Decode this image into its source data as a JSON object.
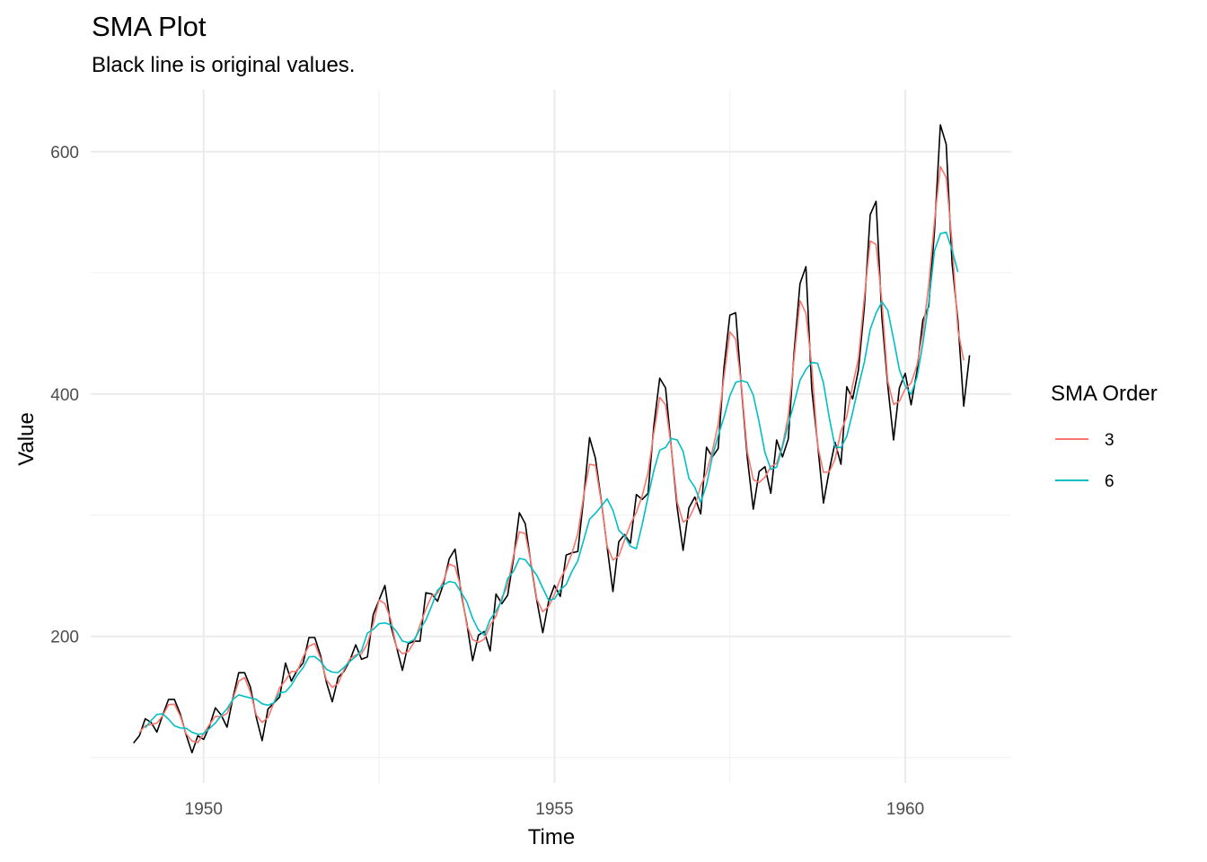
{
  "chart_data": {
    "type": "line",
    "title": "SMA Plot",
    "subtitle": "Black line is original values.",
    "xlabel": "Time",
    "ylabel": "Value",
    "xlim": [
      1948.39,
      1961.51
    ],
    "ylim": [
      79,
      651
    ],
    "x_ticks": [
      1950,
      1955,
      1960
    ],
    "x_tick_labels": [
      "1950",
      "1955",
      "1960"
    ],
    "x_minor_ticks": [
      1952.5,
      1957.5
    ],
    "y_ticks": [
      200,
      400,
      600
    ],
    "y_tick_labels": [
      "200",
      "400",
      "600"
    ],
    "y_minor_ticks": [
      100,
      300,
      500
    ],
    "grid": true,
    "legend": {
      "title": "SMA Order",
      "placement": "right",
      "entries": [
        {
          "label": "3",
          "color": "#F8766D"
        },
        {
          "label": "6",
          "color": "#00BFC4"
        }
      ]
    },
    "x_start": 1949.0,
    "x_step": 0.083333333,
    "series": [
      {
        "name": "Original",
        "color": "#000000",
        "values": [
          112,
          118,
          132,
          129,
          121,
          135,
          148,
          148,
          136,
          119,
          104,
          118,
          115,
          126,
          141,
          135,
          125,
          149,
          170,
          170,
          158,
          133,
          114,
          140,
          145,
          150,
          178,
          163,
          172,
          178,
          199,
          199,
          184,
          162,
          146,
          166,
          171,
          180,
          193,
          181,
          183,
          218,
          230,
          242,
          209,
          191,
          172,
          194,
          196,
          196,
          236,
          235,
          229,
          243,
          264,
          272,
          237,
          211,
          180,
          201,
          204,
          188,
          235,
          227,
          234,
          264,
          302,
          293,
          259,
          229,
          203,
          229,
          242,
          233,
          267,
          269,
          270,
          315,
          364,
          347,
          312,
          274,
          237,
          278,
          284,
          277,
          317,
          313,
          318,
          374,
          413,
          405,
          355,
          306,
          271,
          306,
          315,
          301,
          356,
          348,
          355,
          422,
          465,
          467,
          404,
          347,
          305,
          336,
          340,
          318,
          362,
          348,
          363,
          435,
          491,
          505,
          404,
          359,
          310,
          337,
          360,
          342,
          406,
          396,
          420,
          472,
          548,
          559,
          463,
          407,
          362,
          405,
          417,
          391,
          419,
          461,
          472,
          535,
          622,
          606,
          508,
          461,
          390,
          432
        ]
      },
      {
        "name": "3",
        "color": "#F8766D",
        "window": 3,
        "values": [
          null,
          120.67,
          126.33,
          127.33,
          128.33,
          134.67,
          143.67,
          144.0,
          134.33,
          119.67,
          113.67,
          112.33,
          119.67,
          127.33,
          134.0,
          133.67,
          136.33,
          148.0,
          163.0,
          166.0,
          153.67,
          135.0,
          129.0,
          133.0,
          145.0,
          157.67,
          163.67,
          171.0,
          171.0,
          183.0,
          192.0,
          194.0,
          181.67,
          164.0,
          158.0,
          161.0,
          172.33,
          181.33,
          184.67,
          185.67,
          194.0,
          210.33,
          230.0,
          227.0,
          214.0,
          190.67,
          185.67,
          187.33,
          195.33,
          209.33,
          222.33,
          233.33,
          235.67,
          245.33,
          259.67,
          257.67,
          240.0,
          209.33,
          197.33,
          195.0,
          197.67,
          209.0,
          216.67,
          232.0,
          241.67,
          266.67,
          286.33,
          284.67,
          260.33,
          230.33,
          220.33,
          224.67,
          234.67,
          247.33,
          256.33,
          268.67,
          284.67,
          316.33,
          342.0,
          341.0,
          311.0,
          274.33,
          263.0,
          266.33,
          279.67,
          292.67,
          302.33,
          316.0,
          335.0,
          368.33,
          397.33,
          391.0,
          355.33,
          310.67,
          294.33,
          297.33,
          307.33,
          324.0,
          335.0,
          353.0,
          375.0,
          414.0,
          451.33,
          445.33,
          406.0,
          352.0,
          329.33,
          327.0,
          331.33,
          340.0,
          342.67,
          357.67,
          382.0,
          429.67,
          477.0,
          466.67,
          422.67,
          357.67,
          335.33,
          335.67,
          346.33,
          369.33,
          381.33,
          407.33,
          429.33,
          480.0,
          526.33,
          523.33,
          476.33,
          410.67,
          391.33,
          394.0,
          404.33,
          409.0,
          423.67,
          450.67,
          489.33,
          543.0,
          587.67,
          578.67,
          525.0,
          453.0,
          427.67,
          null
        ]
      },
      {
        "name": "6",
        "color": "#00BFC4",
        "window": 6,
        "values": [
          null,
          null,
          124.5,
          130.5,
          135.5,
          136.0,
          131.67,
          126.17,
          124.33,
          124.17,
          120.83,
          119.17,
          119.67,
          124.0,
          128.5,
          134.67,
          140.17,
          148.0,
          151.67,
          150.33,
          149.17,
          148.0,
          144.33,
          143.17,
          145.17,
          153.33,
          154.17,
          159.67,
          167.83,
          174.17,
          183.0,
          183.33,
          179.33,
          172.83,
          170.5,
          170.17,
          174.33,
          179.17,
          183.33,
          188.33,
          202.67,
          205.67,
          210.5,
          211.0,
          209.5,
          203.83,
          196.17,
          194.83,
          197.33,
          205.67,
          213.5,
          225.17,
          238.17,
          242.33,
          245.17,
          244.33,
          236.5,
          228.67,
          214.83,
          205.17,
          201.17,
          214.0,
          220.67,
          229.67,
          247.67,
          253.67,
          264.33,
          263.17,
          256.83,
          250.17,
          239.83,
          229.67,
          231.0,
          238.5,
          242.67,
          253.67,
          262.33,
          279.67,
          296.67,
          301.5,
          307.33,
          313.5,
          304.0,
          287.67,
          282.67,
          274.33,
          272.33,
          292.33,
          315.17,
          337.0,
          353.67,
          355.83,
          363.33,
          362.0,
          352.67,
          330.33,
          323.0,
          310.5,
          325.0,
          348.33,
          365.67,
          380.83,
          398.5,
          409.5,
          411.0,
          409.5,
          399.0,
          376.67,
          351.67,
          337.83,
          339.67,
          356.5,
          375.0,
          392.67,
          411.33,
          420.17,
          426.0,
          425.33,
          409.17,
          380.33,
          356.33,
          355.67,
          365.17,
          384.67,
          406.17,
          426.33,
          453.33,
          466.83,
          476.0,
          469.17,
          445.17,
          420.0,
          406.67,
          399.67,
          413.83,
          441.5,
          475.17,
          518.17,
          532.33,
          533.5,
          519.0,
          500.67,
          null,
          null
        ]
      }
    ]
  }
}
